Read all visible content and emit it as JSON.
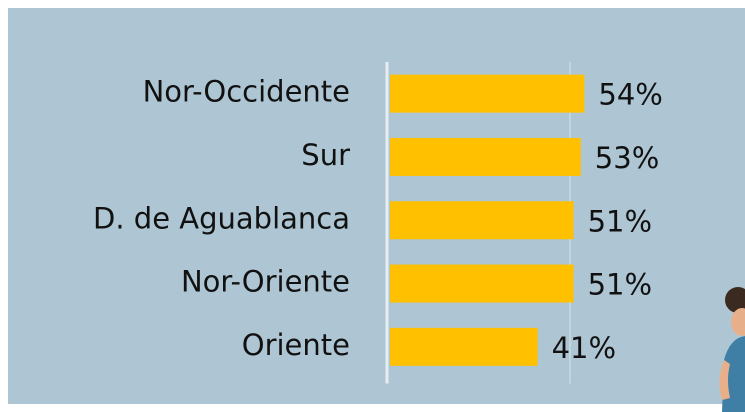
{
  "chart_data": {
    "type": "bar",
    "orientation": "horizontal",
    "categories": [
      "Nor-Occidente",
      "Sur",
      "D. de Aguablanca",
      "Nor-Oriente",
      "Oriente"
    ],
    "values": [
      54,
      53,
      51,
      51,
      41
    ],
    "value_labels": [
      "54%",
      "53%",
      "51%",
      "51%",
      "41%"
    ],
    "color": "#ffc000",
    "xlim": [
      0,
      100
    ],
    "xticks": [
      0,
      50
    ],
    "grid": true
  }
}
